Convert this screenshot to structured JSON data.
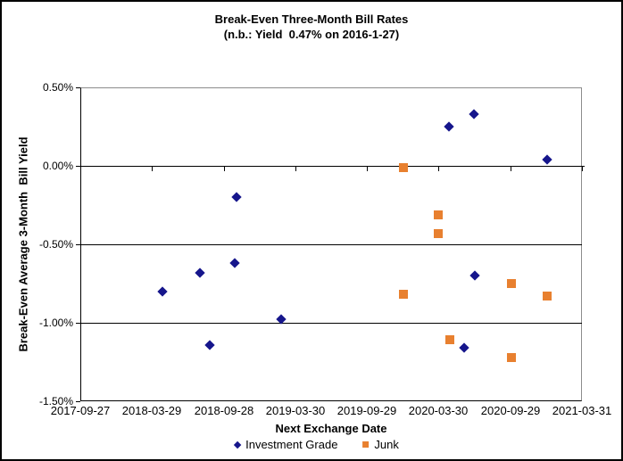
{
  "chart_data": {
    "type": "scatter",
    "title": "Break-Even Three-Month Bill Rates",
    "subtitle": "(n.b.: Yield  0.47% on 2016-1-27)",
    "xlabel": "Next Exchange Date",
    "ylabel": "Break-Even Average 3-Month  Bill Yield",
    "grid": "horizontal",
    "legend_position": "bottom",
    "x_axis": {
      "type": "date",
      "min": "2017-09-27",
      "max": "2021-03-31",
      "tick_labels": [
        "2017-09-27",
        "2018-03-29",
        "2018-09-28",
        "2019-03-30",
        "2019-09-29",
        "2020-03-30",
        "2020-09-29",
        "2021-03-31"
      ]
    },
    "y_axis": {
      "min": -1.5,
      "max": 0.5,
      "tick_step": 0.5,
      "tick_labels": [
        "0.50%",
        "0.00%",
        "-0.50%",
        "-1.00%",
        "-1.50%"
      ],
      "axis_cross_value": 0
    },
    "series": [
      {
        "name": "Investment Grade",
        "marker": "diamond",
        "color": "#16168c",
        "points": [
          {
            "x": "2018-04-25",
            "y": -0.8
          },
          {
            "x": "2018-07-30",
            "y": -0.68
          },
          {
            "x": "2018-08-24",
            "y": -1.14
          },
          {
            "x": "2018-10-27",
            "y": -0.62
          },
          {
            "x": "2018-10-31",
            "y": -0.2
          },
          {
            "x": "2019-02-22",
            "y": -0.98
          },
          {
            "x": "2020-04-26",
            "y": 0.25
          },
          {
            "x": "2020-06-04",
            "y": -1.16
          },
          {
            "x": "2020-06-29",
            "y": 0.33
          },
          {
            "x": "2020-07-01",
            "y": -0.7
          },
          {
            "x": "2020-12-31",
            "y": 0.04
          }
        ]
      },
      {
        "name": "Junk",
        "marker": "square",
        "color": "#e8802f",
        "points": [
          {
            "x": "2019-12-30",
            "y": -0.01
          },
          {
            "x": "2019-12-30",
            "y": -0.82
          },
          {
            "x": "2020-03-30",
            "y": -0.31
          },
          {
            "x": "2020-03-30",
            "y": -0.43
          },
          {
            "x": "2020-04-28",
            "y": -1.11
          },
          {
            "x": "2020-10-01",
            "y": -0.75
          },
          {
            "x": "2020-10-01",
            "y": -1.22
          },
          {
            "x": "2020-12-31",
            "y": -0.83
          }
        ]
      }
    ],
    "colors": {
      "plot_border": "#8c8c8c",
      "axis_line": "#000000",
      "text": "#000000",
      "background": "#ffffff"
    }
  }
}
